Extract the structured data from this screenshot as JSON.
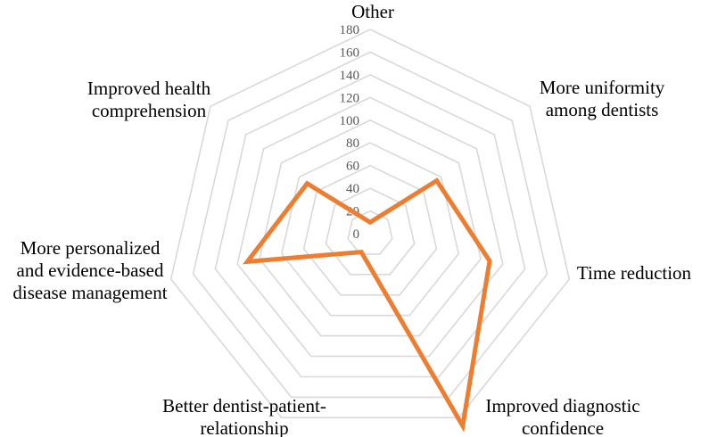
{
  "chart_data": {
    "type": "radar",
    "categories": [
      "Other",
      "More uniformity among dentists",
      "Time reduction",
      "Improved diagnostic confidence",
      "Better dentist-patient-relationship",
      "More personalized and evidence-based disease management",
      "Improved health comprehension"
    ],
    "category_label_lines": [
      [
        "Other"
      ],
      [
        "More uniformity",
        "among dentists"
      ],
      [
        "Time reduction"
      ],
      [
        "Improved diagnostic",
        "confidence"
      ],
      [
        "Better dentist-patient-",
        "relationship"
      ],
      [
        "More personalized",
        "and evidence-based",
        "disease management"
      ],
      [
        "Improved health",
        "comprehension"
      ]
    ],
    "series": [
      {
        "values": [
          10,
          75,
          108,
          188,
          18,
          111,
          71
        ]
      }
    ],
    "rlim": [
      0,
      180
    ],
    "ticks": [
      0,
      20,
      40,
      60,
      80,
      100,
      120,
      140,
      160,
      180
    ],
    "grid": true,
    "legend": "none",
    "colors": {
      "series": "#ed7d31",
      "grid": "#d9d9d9",
      "tick_text": "#595959",
      "text": "#000000"
    }
  }
}
